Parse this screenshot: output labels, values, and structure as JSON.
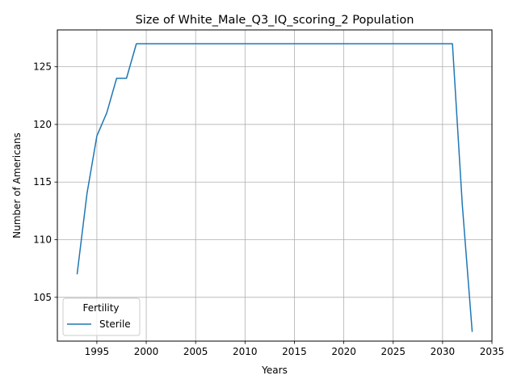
{
  "chart_data": {
    "type": "line",
    "title": "Size of White_Male_Q3_IQ_scoring_2 Population",
    "xlabel": "Years",
    "ylabel": "Number of Americans",
    "xlim": [
      1991,
      2035
    ],
    "ylim": [
      101.2,
      128.2
    ],
    "x_ticks": [
      1995,
      2000,
      2005,
      2010,
      2015,
      2020,
      2025,
      2030,
      2035
    ],
    "y_ticks": [
      105,
      110,
      115,
      120,
      125
    ],
    "grid": true,
    "legend": {
      "title": "Fertility",
      "placement": "lower-left"
    },
    "series": [
      {
        "name": "Sterile",
        "color": "#1f77b4",
        "x": [
          1993,
          1994,
          1995,
          1996,
          1997,
          1998,
          1999,
          2000,
          2005,
          2010,
          2015,
          2020,
          2025,
          2030,
          2031,
          2032,
          2033
        ],
        "y": [
          107,
          114,
          119,
          121,
          124,
          124,
          127,
          127,
          127,
          127,
          127,
          127,
          127,
          127,
          127,
          113,
          102
        ]
      }
    ]
  }
}
